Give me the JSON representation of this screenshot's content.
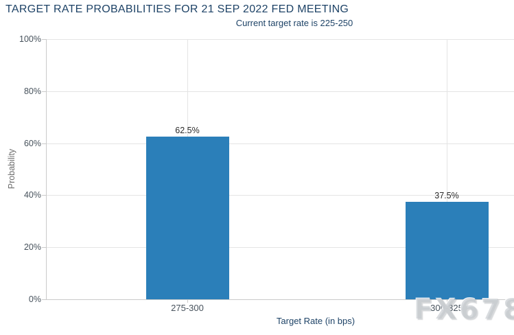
{
  "chart_data": {
    "type": "bar",
    "title": "TARGET RATE PROBABILITIES FOR 21 SEP 2022 FED MEETING",
    "subtitle": "Current target rate is 225-250",
    "categories": [
      "275-300",
      "300-325"
    ],
    "values": [
      62.5,
      37.5
    ],
    "value_labels": [
      "62.5%",
      "37.5%"
    ],
    "xlabel": "Target Rate (in bps)",
    "ylabel": "Probability",
    "ylim": [
      0,
      100
    ],
    "yticks": [
      "0%",
      "20%",
      "40%",
      "60%",
      "80%",
      "100%"
    ],
    "grid": true,
    "legend_position": "none",
    "bar_color": "#2b7fb9"
  },
  "watermark": {
    "text": "FX678"
  },
  "colors": {
    "title_text": "#1d4266",
    "axis_tick_text": "#47525c",
    "value_label_text": "#2b2b2b",
    "axis_line": "#c9c9c9",
    "gridline": "#e4e4e4",
    "bar": "#2b7fb9",
    "watermark_text": "#c1c6cb",
    "background": "#ffffff"
  }
}
